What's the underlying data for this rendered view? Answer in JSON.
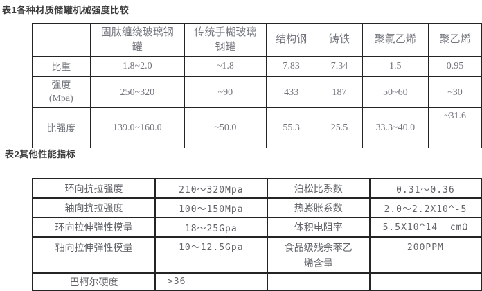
{
  "page": {
    "background": "#ffffff",
    "border_color": "#242424",
    "title_color": "#3c3c3c",
    "table1_text_color": "#73767e",
    "table2_text_color": "#616469"
  },
  "table1": {
    "title": "表1各种材质储罐机械强度比较",
    "corner": "",
    "col_headers": [
      "固肽缠绕玻璃钢\n罐",
      "传统手糊玻璃\n钢罐",
      "结构钢",
      "铸铁",
      "聚氯乙烯",
      "聚乙烯"
    ],
    "rows": [
      {
        "label": "比重",
        "values": [
          "1.8~2.0",
          "~1.8",
          "7.83",
          "7.34",
          "1.5",
          "0.95"
        ]
      },
      {
        "label": "强度\n(Mpa)",
        "values": [
          "250~320",
          "~90",
          "433",
          "187",
          "50~60",
          "~30"
        ]
      },
      {
        "label": "比强度",
        "values": [
          "139.0~160.0",
          "~50.0",
          "55.3",
          "25.5",
          "33.3~40.0",
          "~31.6"
        ]
      }
    ]
  },
  "table2": {
    "title": "表2其他性能指标",
    "rows": [
      [
        "环向抗拉强度",
        "210～320Mpa",
        "泊松比系数",
        "0.31～0.36"
      ],
      [
        "轴向抗拉强度",
        "100～150Mpa",
        "热膨胀系数",
        "2.0～2.2X10^-5"
      ],
      [
        "环向拉伸弹性模量",
        "18～25Gpa",
        "体积电阻率",
        "5.5X10^14  cmΩ"
      ],
      [
        "轴向拉伸弹性模量",
        "10～12.5Gpa",
        "食品级残余苯乙\n烯含量",
        "200PPM"
      ],
      [
        "巴柯尔硬度",
        ">36",
        "",
        ""
      ]
    ]
  }
}
